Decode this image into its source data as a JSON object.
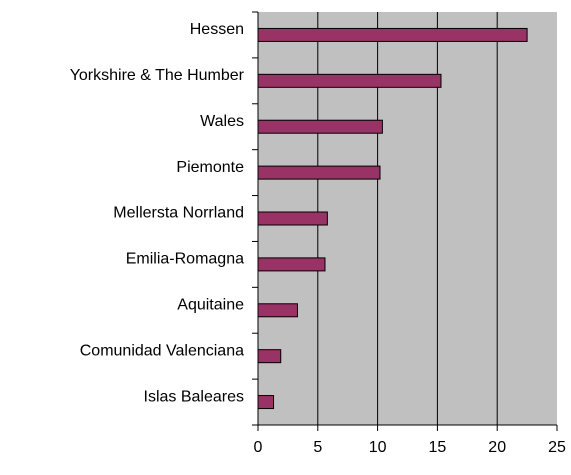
{
  "chart_data": {
    "type": "hbar",
    "categories": [
      "Hessen",
      "Yorkshire & The Humber",
      "Wales",
      "Piemonte",
      "Mellersta Norrland",
      "Emilia-Romagna",
      "Aquitaine",
      "Comunidad Valenciana",
      "Islas Baleares"
    ],
    "values": [
      22.5,
      15.3,
      10.4,
      10.2,
      5.8,
      5.6,
      3.3,
      1.9,
      1.3
    ],
    "color": "#993366",
    "xlim": [
      0,
      25
    ],
    "xticks": [
      0,
      5,
      10,
      15,
      20,
      25
    ],
    "grid": true
  }
}
